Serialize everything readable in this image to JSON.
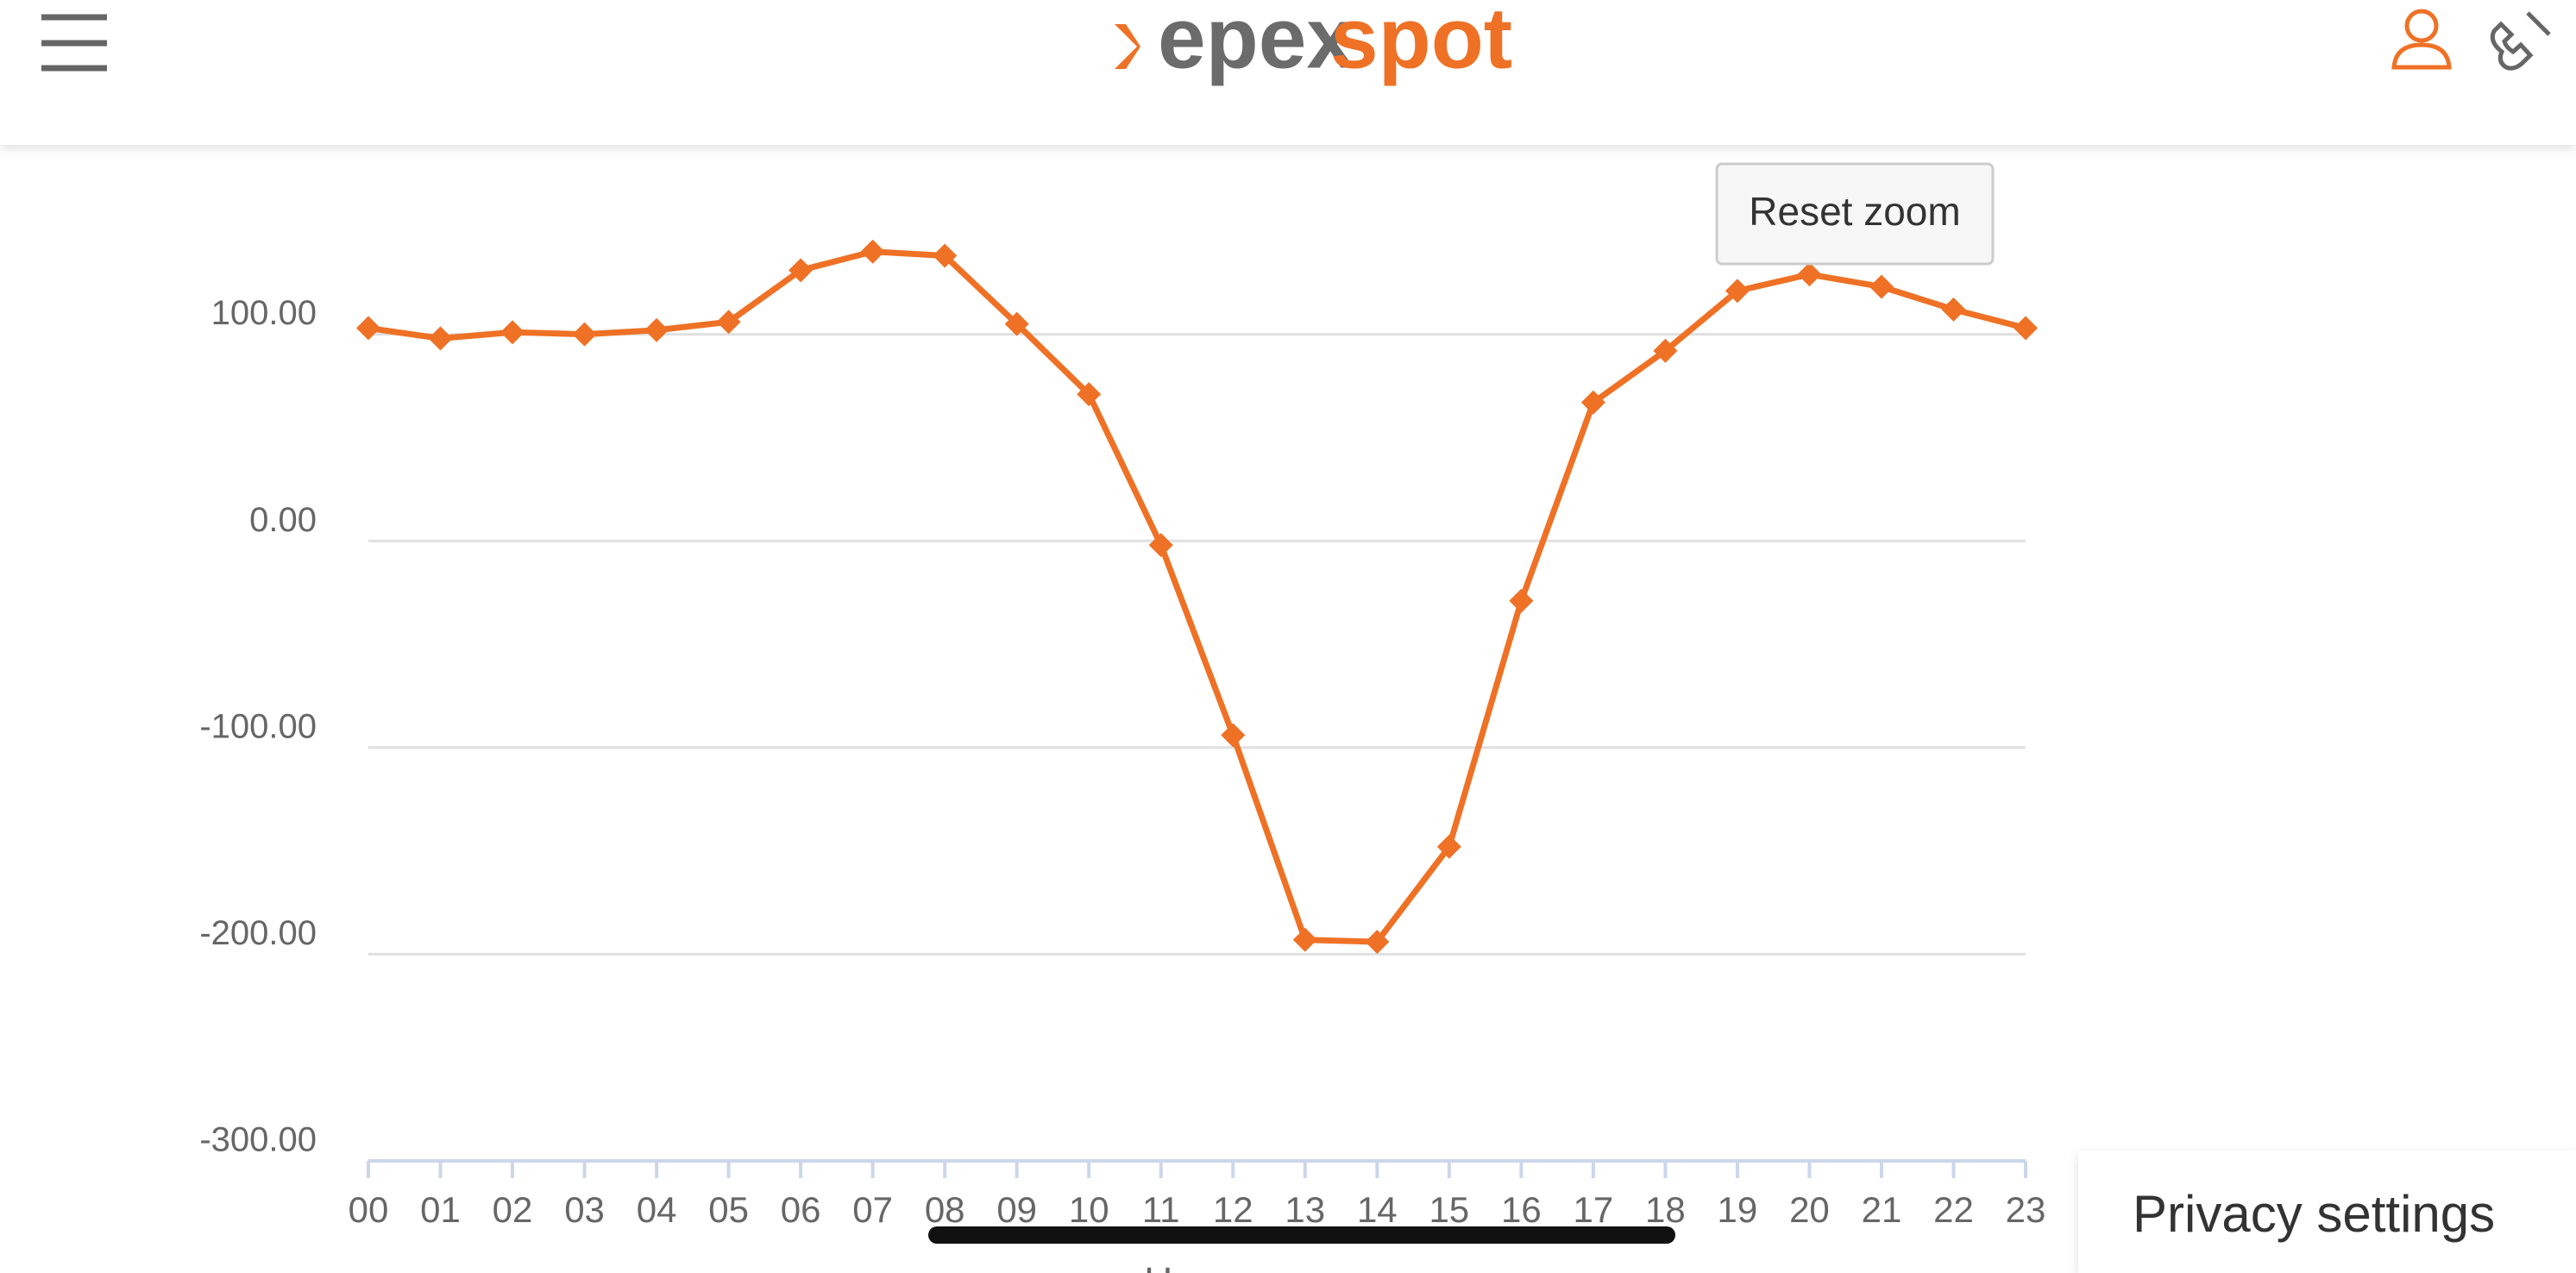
{
  "header": {
    "logo_left": "epex",
    "logo_right": "spot"
  },
  "reset_button": "Reset zoom",
  "privacy_button": "Privacy settings",
  "chart_data": {
    "type": "line",
    "x_label": "Hours",
    "categories": [
      "00",
      "01",
      "02",
      "03",
      "04",
      "05",
      "06",
      "07",
      "08",
      "09",
      "10",
      "11",
      "12",
      "13",
      "14",
      "15",
      "16",
      "17",
      "18",
      "19",
      "20",
      "21",
      "22",
      "23"
    ],
    "series": [
      {
        "color": "#ef7125",
        "values": [
          103,
          98,
          101,
          100,
          102,
          106,
          131,
          140,
          138,
          105,
          71,
          -2,
          -94,
          -193,
          -194,
          -148,
          -29,
          67,
          92,
          121,
          129,
          123,
          112,
          103
        ]
      }
    ],
    "ylim": [
      -300,
      200
    ],
    "yticks": [
      {
        "value": -300,
        "label": "-300.00"
      },
      {
        "value": -200,
        "label": "-200.00"
      },
      {
        "value": -100,
        "label": "-100.00"
      },
      {
        "value": 0,
        "label": "0.00"
      },
      {
        "value": 100,
        "label": "100.00"
      }
    ],
    "grid": true
  }
}
